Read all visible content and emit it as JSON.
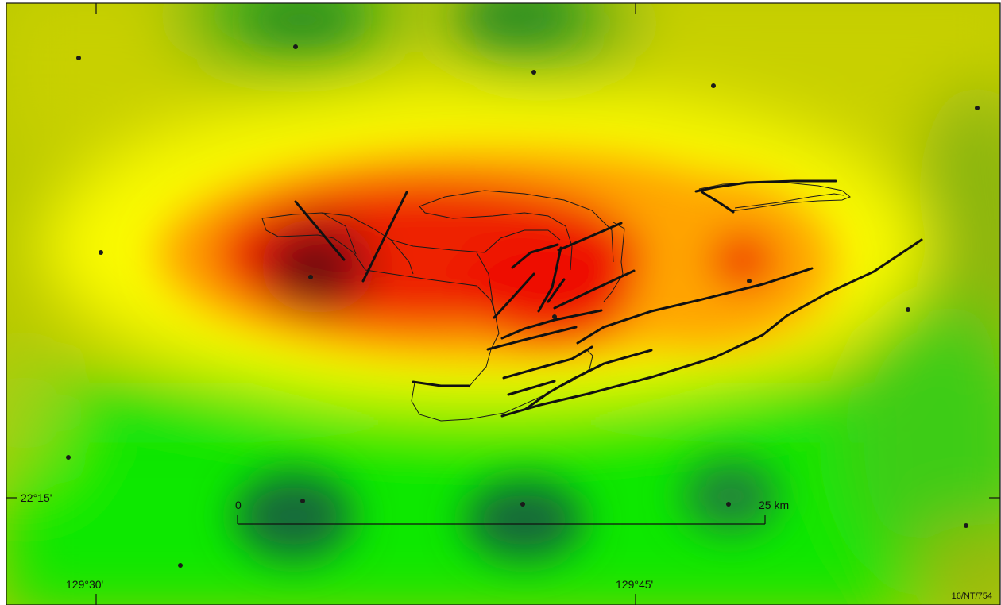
{
  "map": {
    "coordinates": {
      "latitude_label": "22°15'",
      "longitude_labels": [
        "129°30'",
        "129°45'"
      ]
    },
    "scale_bar": {
      "start_label": "0",
      "end_label": "25 km"
    },
    "reference_code": "16/NT/754",
    "colors": {
      "anomaly_max": "#5a0c0c",
      "high": "#ee0a00",
      "mid_high": "#ff8a00",
      "mid": "#ffff00",
      "low": "#19f500",
      "min": "#0c5e2a",
      "stations": "#1a1a1a",
      "faults": "#111111"
    },
    "legend_items": []
  }
}
